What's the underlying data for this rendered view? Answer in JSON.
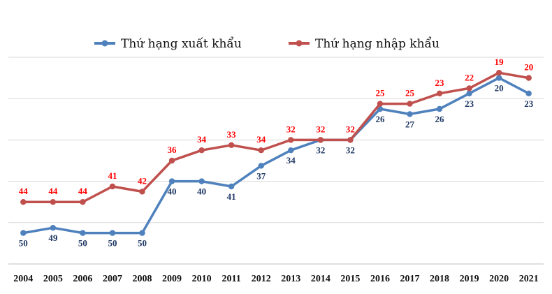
{
  "chart_data": {
    "type": "line",
    "title": "",
    "xlabel": "",
    "ylabel": "",
    "x": [
      "2004",
      "2005",
      "2006",
      "2007",
      "2008",
      "2009",
      "2010",
      "2011",
      "2012",
      "2013",
      "2014",
      "2015",
      "2016",
      "2017",
      "2018",
      "2019",
      "2020",
      "2021"
    ],
    "ylim": [
      56,
      16
    ],
    "y_inverted": true,
    "grid": true,
    "legend_position": "top",
    "series": [
      {
        "name": "Thứ hạng xuất khẩu",
        "color": "#4F81BD",
        "label_color": "#1F3864",
        "values": [
          50,
          49,
          50,
          50,
          50,
          40,
          40,
          41,
          37,
          34,
          32,
          32,
          26,
          27,
          26,
          23,
          20,
          23
        ]
      },
      {
        "name": "Thứ hạng nhập khẩu",
        "color": "#C0504D",
        "label_color": "#FF0000",
        "values": [
          44,
          44,
          44,
          41,
          42,
          36,
          34,
          33,
          34,
          32,
          32,
          32,
          25,
          25,
          23,
          22,
          19,
          20
        ]
      }
    ]
  }
}
